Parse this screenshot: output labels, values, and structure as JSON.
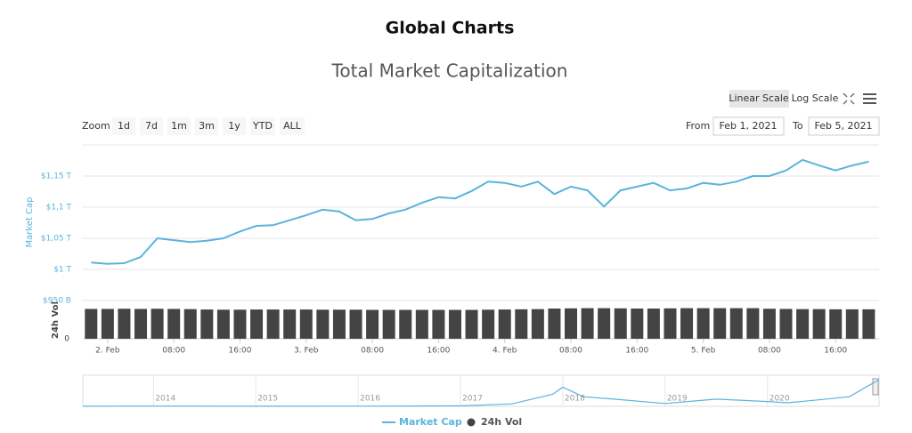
{
  "page_title": "Global Charts",
  "controls": {
    "scale_buttons": [
      "Linear Scale",
      "Log Scale"
    ],
    "zoom_label": "Zoom",
    "zoom_buttons": [
      "1d",
      "7d",
      "1m",
      "3m",
      "1y",
      "YTD",
      "ALL"
    ],
    "from_label": "From",
    "from_value": "Feb 1, 2021",
    "to_label": "To",
    "to_value": "Feb 5, 2021"
  },
  "chart_data": {
    "type": "line",
    "title": "Total Market Capitalization",
    "ylabel": "Market Cap",
    "y2label": "24h Vol",
    "xlim": [
      "2021-02-01T21:00",
      "2021-02-05T21:15"
    ],
    "xticks": [
      {
        "value": "2021-02-02T00:00",
        "label": "2. Feb"
      },
      {
        "value": "2021-02-02T08:00",
        "label": "08:00"
      },
      {
        "value": "2021-02-02T16:00",
        "label": "16:00"
      },
      {
        "value": "2021-02-03T00:00",
        "label": "3. Feb"
      },
      {
        "value": "2021-02-03T08:00",
        "label": "08:00"
      },
      {
        "value": "2021-02-03T16:00",
        "label": "16:00"
      },
      {
        "value": "2021-02-04T00:00",
        "label": "4. Feb"
      },
      {
        "value": "2021-02-04T08:00",
        "label": "08:00"
      },
      {
        "value": "2021-02-04T16:00",
        "label": "16:00"
      },
      {
        "value": "2021-02-05T00:00",
        "label": "5. Feb"
      },
      {
        "value": "2021-02-05T08:00",
        "label": "08:00"
      },
      {
        "value": "2021-02-05T16:00",
        "label": "16:00"
      }
    ],
    "ylim": [
      0.95,
      1.2
    ],
    "yticks": [
      {
        "value": 0.95,
        "label": "$950 B"
      },
      {
        "value": 1,
        "label": "$1 T"
      },
      {
        "value": 1.05,
        "label": "$1,05 T"
      },
      {
        "value": 1.1,
        "label": "$1,1 T"
      },
      {
        "value": 1.15,
        "label": "$1,15 T"
      }
    ],
    "y2lim": [
      0,
      200
    ],
    "y2ticks": [
      0
    ],
    "grid": true,
    "x": [
      "2021-02-01T22:00",
      "2021-02-02T00:00",
      "2021-02-02T02:00",
      "2021-02-02T04:00",
      "2021-02-02T06:00",
      "2021-02-02T08:00",
      "2021-02-02T10:00",
      "2021-02-02T12:00",
      "2021-02-02T14:00",
      "2021-02-02T16:00",
      "2021-02-02T18:00",
      "2021-02-02T20:00",
      "2021-02-02T22:00",
      "2021-02-03T00:00",
      "2021-02-03T02:00",
      "2021-02-03T04:00",
      "2021-02-03T06:00",
      "2021-02-03T08:00",
      "2021-02-03T10:00",
      "2021-02-03T12:00",
      "2021-02-03T14:00",
      "2021-02-03T16:00",
      "2021-02-03T18:00",
      "2021-02-03T20:00",
      "2021-02-03T22:00",
      "2021-02-04T00:00",
      "2021-02-04T02:00",
      "2021-02-04T04:00",
      "2021-02-04T06:00",
      "2021-02-04T08:00",
      "2021-02-04T10:00",
      "2021-02-04T12:00",
      "2021-02-04T14:00",
      "2021-02-04T16:00",
      "2021-02-04T18:00",
      "2021-02-04T20:00",
      "2021-02-04T22:00",
      "2021-02-05T00:00",
      "2021-02-05T02:00",
      "2021-02-05T04:00",
      "2021-02-05T06:00",
      "2021-02-05T08:00",
      "2021-02-05T10:00",
      "2021-02-05T12:00",
      "2021-02-05T14:00",
      "2021-02-05T16:00",
      "2021-02-05T18:00",
      "2021-02-05T20:00"
    ],
    "series": [
      {
        "name": "Market Cap",
        "color": "#5ab4dc",
        "values": [
          1.011,
          1.009,
          1.01,
          1.02,
          1.05,
          1.047,
          1.044,
          1.046,
          1.05,
          1.061,
          1.07,
          1.071,
          1.079,
          1.087,
          1.096,
          1.093,
          1.079,
          1.081,
          1.09,
          1.096,
          1.107,
          1.116,
          1.114,
          1.126,
          1.141,
          1.139,
          1.133,
          1.141,
          1.121,
          1.133,
          1.127,
          1.101,
          1.127,
          1.133,
          1.139,
          1.127,
          1.13,
          1.139,
          1.136,
          1.141,
          1.15,
          1.15,
          1.159,
          1.176,
          1.167,
          1.159,
          1.167,
          1.173
        ]
      },
      {
        "name": "24h Vol",
        "color": "#444444",
        "axis": "y2",
        "values": [
          156,
          156,
          157,
          156,
          157,
          156,
          155,
          153,
          152,
          152,
          153,
          153,
          153,
          153,
          152,
          152,
          152,
          151,
          151,
          151,
          151,
          151,
          151,
          151,
          152,
          153,
          154,
          155,
          158,
          159,
          160,
          160,
          159,
          158,
          158,
          159,
          160,
          160,
          160,
          160,
          160,
          157,
          156,
          155,
          155,
          154,
          154,
          154
        ]
      }
    ],
    "navigator": {
      "xlim": [
        2013.31,
        2021.09
      ],
      "ylim": [
        0,
        1.3
      ],
      "xticks": [
        2014,
        2015,
        2016,
        2017,
        2018,
        2019,
        2020
      ],
      "x": [
        2013.31,
        2014,
        2015,
        2016,
        2017,
        2017.5,
        2017.9,
        2018.0,
        2018.2,
        2018.5,
        2019,
        2019.5,
        2020,
        2020.2,
        2020.5,
        2020.8,
        2021.0,
        2021.09
      ],
      "values": [
        0.005,
        0.01,
        0.005,
        0.007,
        0.02,
        0.1,
        0.5,
        0.8,
        0.4,
        0.3,
        0.12,
        0.3,
        0.2,
        0.15,
        0.27,
        0.4,
        0.9,
        1.1
      ]
    }
  }
}
